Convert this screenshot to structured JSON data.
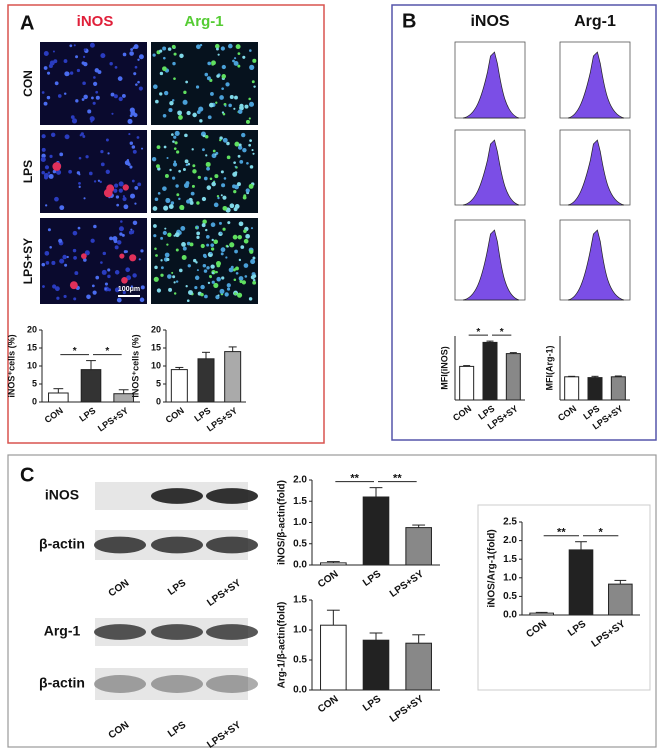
{
  "figure": {
    "panel_a": {
      "label": "A",
      "columns": [
        "iNOS",
        "Arg-1"
      ],
      "rows": [
        "CON",
        "LPS",
        "LPS+SY"
      ],
      "scale_bar": "100μm"
    },
    "panel_b": {
      "label": "B",
      "columns": [
        "iNOS",
        "Arg-1"
      ]
    },
    "panel_c": {
      "label": "C",
      "blots": [
        "iNOS",
        "β-actin",
        "Arg-1",
        "β-actin"
      ],
      "lanes": [
        "CON",
        "LPS",
        "LPS+SY"
      ]
    }
  },
  "chart_data": [
    {
      "type": "bar",
      "ylabel": "iNOS⁺cells (%)",
      "categories": [
        "CON",
        "LPS",
        "LPS+SY"
      ],
      "values": [
        2.5,
        9,
        2.3
      ],
      "errors": [
        1.2,
        2.5,
        1.1
      ],
      "colors": [
        "#ffffff",
        "#333333",
        "#aaaaaa"
      ],
      "ylim": [
        0,
        20
      ],
      "yticks": [
        0,
        5,
        10,
        15,
        20
      ],
      "annotations": [
        {
          "text": "*",
          "between": [
            0,
            1
          ]
        },
        {
          "text": "*",
          "between": [
            1,
            2
          ]
        }
      ]
    },
    {
      "type": "bar",
      "ylabel": "iNOS⁺cells (%)",
      "categories": [
        "CON",
        "LPS",
        "LPS+SY"
      ],
      "values": [
        9,
        12,
        14
      ],
      "errors": [
        0.6,
        1.8,
        1.3
      ],
      "colors": [
        "#ffffff",
        "#333333",
        "#aaaaaa"
      ],
      "ylim": [
        0,
        20
      ],
      "yticks": [
        0,
        5,
        10,
        15,
        20
      ]
    },
    {
      "type": "bar",
      "ylabel": "MFI(iNOS)",
      "categories": [
        "CON",
        "LPS",
        "LPS+SY"
      ],
      "values": [
        210,
        360,
        290
      ],
      "errors": [
        5,
        8,
        6
      ],
      "colors": [
        "#ffffff",
        "#222222",
        "#888888"
      ],
      "ylim": [
        0,
        400
      ],
      "annotations": [
        {
          "text": "*",
          "between": [
            0,
            1
          ]
        },
        {
          "text": "*",
          "between": [
            1,
            2
          ]
        }
      ]
    },
    {
      "type": "bar",
      "ylabel": "MFI(Arg-1)",
      "categories": [
        "CON",
        "LPS",
        "LPS+SY"
      ],
      "values": [
        145,
        140,
        145
      ],
      "errors": [
        3,
        8,
        5
      ],
      "colors": [
        "#ffffff",
        "#222222",
        "#888888"
      ],
      "ylim": [
        0,
        400
      ]
    },
    {
      "type": "bar",
      "ylabel": "iNOS/β-actin(fold)",
      "categories": [
        "CON",
        "LPS",
        "LPS+SY"
      ],
      "values": [
        0.05,
        1.6,
        0.88
      ],
      "errors": [
        0.03,
        0.22,
        0.06
      ],
      "colors": [
        "#ffffff",
        "#222222",
        "#888888"
      ],
      "ylim": [
        0,
        2
      ],
      "yticks": [
        {
          "value": 0,
          "label": "0.0"
        },
        {
          "value": 0.5,
          "label": "0.5"
        },
        {
          "value": 1,
          "label": "1.0"
        },
        {
          "value": 1.5,
          "label": "1.5"
        },
        {
          "value": 2,
          "label": "2.0"
        }
      ],
      "annotations": [
        {
          "text": "**",
          "between": [
            0,
            1
          ]
        },
        {
          "text": "**",
          "between": [
            1,
            2
          ]
        }
      ]
    },
    {
      "type": "bar",
      "ylabel": "Arg-1/β-actin(fold)",
      "categories": [
        "CON",
        "LPS",
        "LPS+SY"
      ],
      "values": [
        1.08,
        0.83,
        0.78
      ],
      "errors": [
        0.25,
        0.12,
        0.14
      ],
      "colors": [
        "#ffffff",
        "#222222",
        "#888888"
      ],
      "ylim": [
        0,
        1.5
      ],
      "yticks": [
        {
          "value": 0,
          "label": "0.0"
        },
        {
          "value": 0.5,
          "label": "0.5"
        },
        {
          "value": 1,
          "label": "1.0"
        },
        {
          "value": 1.5,
          "label": "1.5"
        }
      ]
    },
    {
      "type": "bar",
      "ylabel": "iNOS/Arg-1(fold)",
      "categories": [
        "CON",
        "LPS",
        "LPS+SY"
      ],
      "values": [
        0.05,
        1.75,
        0.83
      ],
      "errors": [
        0.02,
        0.22,
        0.1
      ],
      "colors": [
        "#ffffff",
        "#222222",
        "#888888"
      ],
      "ylim": [
        0,
        2.5
      ],
      "yticks": [
        {
          "value": 0,
          "label": "0.0"
        },
        {
          "value": 0.5,
          "label": "0.5"
        },
        {
          "value": 1,
          "label": "1.0"
        },
        {
          "value": 1.5,
          "label": "1.5"
        },
        {
          "value": 2,
          "label": "2.0"
        },
        {
          "value": 2.5,
          "label": "2.5"
        }
      ],
      "annotations": [
        {
          "text": "**",
          "between": [
            0,
            1
          ]
        },
        {
          "text": "*",
          "between": [
            1,
            2
          ]
        }
      ]
    }
  ]
}
